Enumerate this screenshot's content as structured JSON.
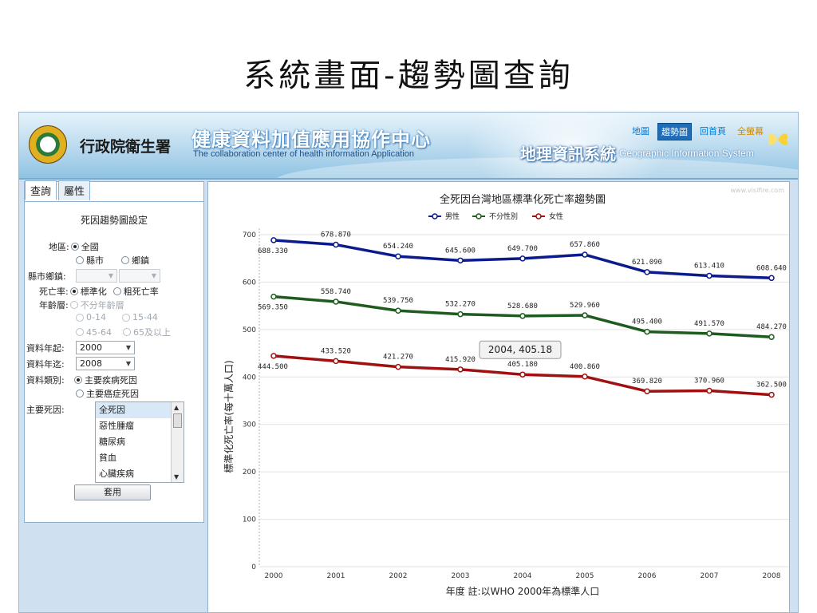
{
  "slide": {
    "title": "系統畫面-趨勢圖查詢"
  },
  "header": {
    "ministry": "行政院衛生署",
    "center_title": "健康資料加值應用協作中心",
    "center_subtitle": "The collaboration center of health information Application",
    "gis_title": "地理資訊系統",
    "gis_subtitle": "Geographic Information System",
    "nav": [
      {
        "label": "地圖",
        "active": false
      },
      {
        "label": "趨勢圖",
        "active": true
      },
      {
        "label": "回首頁",
        "active": false
      },
      {
        "label": "全螢幕",
        "active": false
      }
    ]
  },
  "panel": {
    "tabs": [
      "查詢",
      "屬性"
    ],
    "title": "死因趨勢圖設定",
    "region": {
      "label": "地區:",
      "options": [
        "全國",
        "縣市",
        "鄉鎮"
      ],
      "selected": "全國"
    },
    "town": {
      "label": "縣市鄉鎮:",
      "value1": "",
      "value2": ""
    },
    "rate": {
      "label": "死亡率:",
      "options": [
        "標準化",
        "粗死亡率"
      ],
      "selected": "標準化"
    },
    "age": {
      "label": "年齡層:",
      "options": [
        "不分年齡層",
        "0-14",
        "15-44",
        "45-64",
        "65及以上"
      ]
    },
    "year_from": {
      "label": "資料年起:",
      "value": "2000"
    },
    "year_to": {
      "label": "資料年迄:",
      "value": "2008"
    },
    "data_type": {
      "label": "資料類別:",
      "options": [
        "主要疾病死因",
        "主要癌症死因"
      ],
      "selected": "主要疾病死因"
    },
    "causes": {
      "label": "主要死因:",
      "items": [
        "全死因",
        "惡性腫瘤",
        "糖尿病",
        "貧血",
        "心臟疾病"
      ],
      "selected": "全死因"
    },
    "apply_label": "套用"
  },
  "chart": {
    "watermark": "www.visifire.com",
    "tooltip": "2004, 405.18"
  },
  "chart_data": {
    "type": "line",
    "title": "全死因台灣地區標準化死亡率趨勢圖",
    "xlabel": "年度   註:以WHO 2000年為標準人口",
    "ylabel": "標準化死亡率(每十萬人口)",
    "ylim": [
      0,
      700
    ],
    "yticks": [
      "0",
      "100",
      "200",
      "300",
      "400",
      "500",
      "600",
      "700"
    ],
    "x": [
      "2000",
      "2001",
      "2002",
      "2003",
      "2004",
      "2005",
      "2006",
      "2007",
      "2008"
    ],
    "legend_position": "top",
    "series": [
      {
        "name": "男性",
        "color": "#0b1a8c",
        "values": [
          688.33,
          678.87,
          654.24,
          645.6,
          649.7,
          657.86,
          621.09,
          613.41,
          608.64
        ],
        "labels": [
          "688.330",
          "678.870",
          "654.240",
          "645.600",
          "649.700",
          "657.860",
          "621.090",
          "613.410",
          "608.640"
        ]
      },
      {
        "name": "不分性別",
        "color": "#1e5b1e",
        "values": [
          569.35,
          558.74,
          539.75,
          532.27,
          528.68,
          529.96,
          495.4,
          491.57,
          484.27
        ],
        "labels": [
          "569.350",
          "558.740",
          "539.750",
          "532.270",
          "528.680",
          "529.960",
          "495.400",
          "491.570",
          "484.270"
        ]
      },
      {
        "name": "女性",
        "color": "#a01010",
        "values": [
          444.5,
          433.52,
          421.27,
          415.92,
          405.18,
          400.86,
          369.82,
          370.96,
          362.5
        ],
        "labels": [
          "444.500",
          "433.520",
          "421.270",
          "415.920",
          "405.180",
          "400.860",
          "369.820",
          "370.960",
          "362.500"
        ]
      }
    ]
  }
}
